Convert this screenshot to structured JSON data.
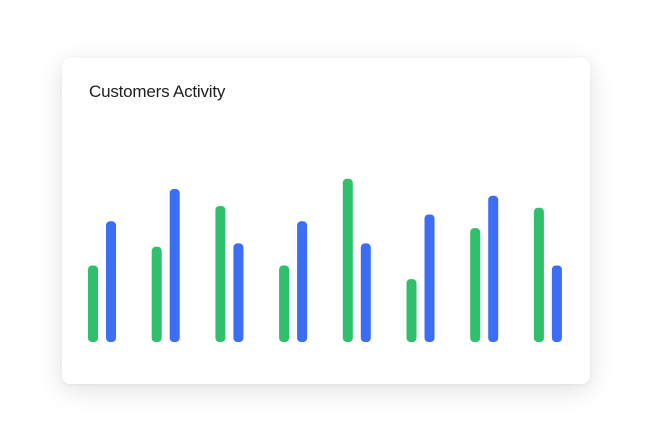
{
  "chart_data": {
    "type": "bar",
    "title": "Customers Activity",
    "categories": [
      "",
      "",
      "",
      "",
      "",
      "",
      "",
      ""
    ],
    "series": [
      {
        "values": [
          45,
          56,
          80,
          45,
          96,
          37,
          67,
          79
        ]
      },
      {
        "values": [
          71,
          90,
          58,
          71,
          58,
          75,
          86,
          45
        ]
      }
    ],
    "ylim": [
      0,
      100
    ],
    "grid": false,
    "colors": [
      "#2ec06a",
      "#3c6df5"
    ]
  }
}
